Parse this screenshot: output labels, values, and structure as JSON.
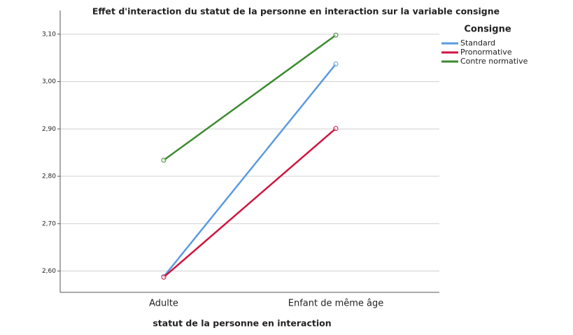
{
  "chart_data": {
    "type": "line",
    "title": "Effet d'interaction du statut de la personne en interaction sur la variable consigne",
    "x_label": "statut de la personne en interaction",
    "legend_title": "Consigne",
    "legend_position": "right",
    "categories": [
      "Adulte",
      "Enfant de même âge"
    ],
    "series": [
      {
        "name": "Standard",
        "color": "#5b9bdf",
        "values": [
          2.588,
          3.037
        ]
      },
      {
        "name": "Pronormative",
        "color": "#d0143f",
        "values": [
          2.587,
          2.901
        ]
      },
      {
        "name": "Contre normative",
        "color": "#3a8a2e",
        "values": [
          2.834,
          3.098
        ]
      }
    ],
    "ylim": [
      2.555,
      3.15
    ],
    "yticks": [
      {
        "value": 2.6,
        "label": "2,60"
      },
      {
        "value": 2.7,
        "label": "2,70"
      },
      {
        "value": 2.8,
        "label": "2,80"
      },
      {
        "value": 2.9,
        "label": "2,90"
      },
      {
        "value": 3.0,
        "label": "3,00"
      },
      {
        "value": 3.1,
        "label": "3,10"
      }
    ],
    "grid": true
  }
}
